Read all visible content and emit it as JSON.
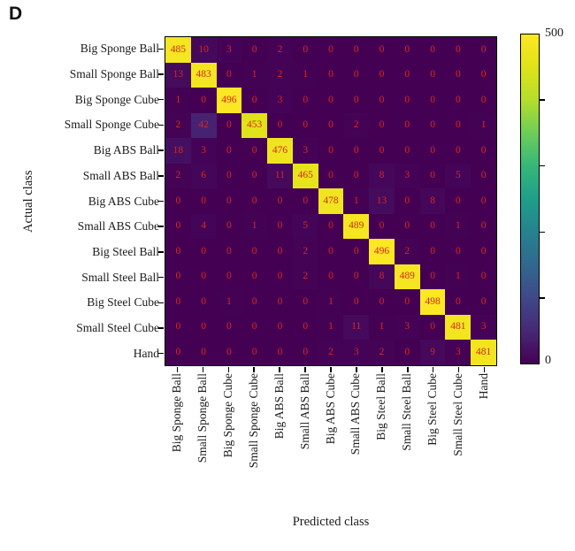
{
  "panel_label": "D",
  "chart_data": {
    "type": "heatmap",
    "subtype": "confusion-matrix",
    "xlabel": "Predicted class",
    "ylabel": "Actual class",
    "categories": [
      "Big Sponge Ball",
      "Small Sponge Ball",
      "Big Sponge Cube",
      "Small Sponge Cube",
      "Big ABS Ball",
      "Small ABS Ball",
      "Big ABS Cube",
      "Small ABS Cube",
      "Big Steel Ball",
      "Small Steel Ball",
      "Big Steel Cube",
      "Small Steel Cube",
      "Hand"
    ],
    "matrix": [
      [
        485,
        10,
        3,
        0,
        2,
        0,
        0,
        0,
        0,
        0,
        0,
        0,
        0
      ],
      [
        13,
        483,
        0,
        1,
        2,
        1,
        0,
        0,
        0,
        0,
        0,
        0,
        0
      ],
      [
        1,
        0,
        496,
        0,
        3,
        0,
        0,
        0,
        0,
        0,
        0,
        0,
        0
      ],
      [
        2,
        42,
        0,
        453,
        0,
        0,
        0,
        2,
        0,
        0,
        0,
        0,
        1
      ],
      [
        18,
        3,
        0,
        0,
        476,
        3,
        0,
        0,
        0,
        0,
        0,
        0,
        0
      ],
      [
        2,
        6,
        0,
        0,
        11,
        465,
        0,
        0,
        8,
        3,
        0,
        5,
        0
      ],
      [
        0,
        0,
        0,
        0,
        0,
        0,
        478,
        1,
        13,
        0,
        8,
        0,
        0
      ],
      [
        0,
        4,
        0,
        1,
        0,
        5,
        0,
        489,
        0,
        0,
        0,
        1,
        0
      ],
      [
        0,
        0,
        0,
        0,
        0,
        2,
        0,
        0,
        496,
        2,
        0,
        0,
        0
      ],
      [
        0,
        0,
        0,
        0,
        0,
        2,
        0,
        0,
        8,
        489,
        0,
        1,
        0
      ],
      [
        0,
        0,
        1,
        0,
        0,
        0,
        1,
        0,
        0,
        0,
        498,
        0,
        0
      ],
      [
        0,
        0,
        0,
        0,
        0,
        0,
        1,
        11,
        1,
        3,
        0,
        481,
        3
      ],
      [
        0,
        0,
        0,
        0,
        0,
        0,
        2,
        3,
        2,
        0,
        9,
        3,
        481
      ]
    ],
    "vmin": 0,
    "vmax": 500,
    "colormap": "viridis",
    "colormap_stops": [
      "#440154",
      "#482878",
      "#3e4989",
      "#31688e",
      "#26828e",
      "#1f9e89",
      "#35b779",
      "#6dcd59",
      "#b4de2c",
      "#dfe318",
      "#fde725"
    ],
    "value_text_color": "#d8281e",
    "axis_text_color": "#1a1a1a",
    "grid": false,
    "legend": "none",
    "colorbar": {
      "position": "right",
      "max_label": "500",
      "min_label": "0",
      "unlabeled_tick_values": [
        100,
        200,
        300,
        400
      ]
    }
  }
}
